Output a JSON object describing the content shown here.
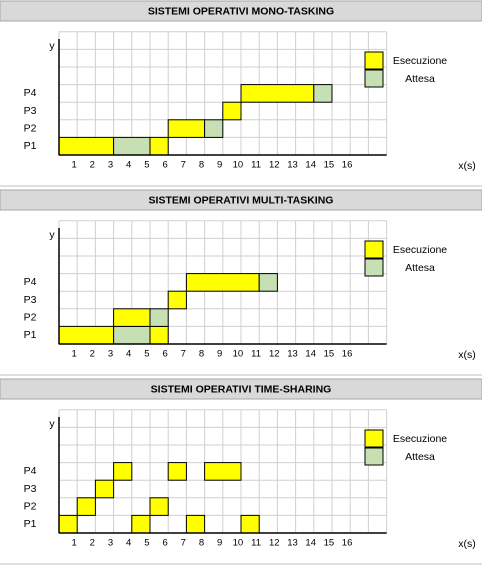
{
  "colors": {
    "execution": "#ffff00",
    "waiting": "#c6e0b4",
    "grid": "#d0d0d0",
    "band": "#d9d9d9",
    "axis": "#000000"
  },
  "chart_data": [
    {
      "type": "gantt",
      "title": "SISTEMI OPERATIVI MONO-TASKING",
      "ylabel": "y",
      "xlabel": "x(s)",
      "x_ticks": [
        1,
        2,
        3,
        4,
        5,
        6,
        7,
        8,
        9,
        10,
        11,
        12,
        13,
        14,
        15,
        16
      ],
      "xlim": [
        0,
        16
      ],
      "rows": [
        "P1",
        "P2",
        "P3",
        "P4"
      ],
      "legend": [
        {
          "name": "Esecuzione",
          "color": "#ffff00"
        },
        {
          "name": "Attesa",
          "color": "#c6e0b4"
        }
      ],
      "legend_position": "top-right",
      "grid": true,
      "segments": [
        {
          "row": "P1",
          "start": 0,
          "end": 3,
          "state": "execution"
        },
        {
          "row": "P1",
          "start": 3,
          "end": 5,
          "state": "waiting"
        },
        {
          "row": "P1",
          "start": 5,
          "end": 6,
          "state": "execution"
        },
        {
          "row": "P2",
          "start": 6,
          "end": 8,
          "state": "execution"
        },
        {
          "row": "P2",
          "start": 8,
          "end": 9,
          "state": "waiting"
        },
        {
          "row": "P3",
          "start": 9,
          "end": 10,
          "state": "execution"
        },
        {
          "row": "P4",
          "start": 10,
          "end": 14,
          "state": "execution"
        },
        {
          "row": "P4",
          "start": 14,
          "end": 15,
          "state": "waiting"
        }
      ]
    },
    {
      "type": "gantt",
      "title": "SISTEMI OPERATIVI MULTI-TASKING",
      "ylabel": "y",
      "xlabel": "x(s)",
      "x_ticks": [
        1,
        2,
        3,
        4,
        5,
        6,
        7,
        8,
        9,
        10,
        11,
        12,
        13,
        14,
        15,
        16
      ],
      "xlim": [
        0,
        16
      ],
      "rows": [
        "P1",
        "P2",
        "P3",
        "P4"
      ],
      "legend": [
        {
          "name": "Esecuzione",
          "color": "#ffff00"
        },
        {
          "name": "Attesa",
          "color": "#c6e0b4"
        }
      ],
      "legend_position": "top-right",
      "grid": true,
      "segments": [
        {
          "row": "P1",
          "start": 0,
          "end": 3,
          "state": "execution"
        },
        {
          "row": "P1",
          "start": 3,
          "end": 5,
          "state": "waiting"
        },
        {
          "row": "P1",
          "start": 5,
          "end": 6,
          "state": "execution"
        },
        {
          "row": "P2",
          "start": 3,
          "end": 5,
          "state": "execution"
        },
        {
          "row": "P2",
          "start": 5,
          "end": 6,
          "state": "waiting"
        },
        {
          "row": "P3",
          "start": 6,
          "end": 7,
          "state": "execution"
        },
        {
          "row": "P4",
          "start": 7,
          "end": 11,
          "state": "execution"
        },
        {
          "row": "P4",
          "start": 11,
          "end": 12,
          "state": "waiting"
        }
      ]
    },
    {
      "type": "gantt",
      "title": "SISTEMI OPERATIVI TIME-SHARING",
      "ylabel": "y",
      "xlabel": "x(s)",
      "x_ticks": [
        1,
        2,
        3,
        4,
        5,
        6,
        7,
        8,
        9,
        10,
        11,
        12,
        13,
        14,
        15,
        16
      ],
      "xlim": [
        0,
        16
      ],
      "rows": [
        "P1",
        "P2",
        "P3",
        "P4"
      ],
      "legend": [
        {
          "name": "Esecuzione",
          "color": "#ffff00"
        },
        {
          "name": "Attesa",
          "color": "#c6e0b4"
        }
      ],
      "legend_position": "top-right",
      "grid": true,
      "segments": [
        {
          "row": "P1",
          "start": 0,
          "end": 1,
          "state": "execution"
        },
        {
          "row": "P2",
          "start": 1,
          "end": 2,
          "state": "execution"
        },
        {
          "row": "P3",
          "start": 2,
          "end": 3,
          "state": "execution"
        },
        {
          "row": "P4",
          "start": 3,
          "end": 4,
          "state": "execution"
        },
        {
          "row": "P1",
          "start": 4,
          "end": 5,
          "state": "execution"
        },
        {
          "row": "P2",
          "start": 5,
          "end": 6,
          "state": "execution"
        },
        {
          "row": "P4",
          "start": 6,
          "end": 7,
          "state": "execution"
        },
        {
          "row": "P1",
          "start": 7,
          "end": 8,
          "state": "execution"
        },
        {
          "row": "P4",
          "start": 8,
          "end": 10,
          "state": "execution"
        },
        {
          "row": "P1",
          "start": 10,
          "end": 11,
          "state": "execution"
        }
      ]
    }
  ]
}
